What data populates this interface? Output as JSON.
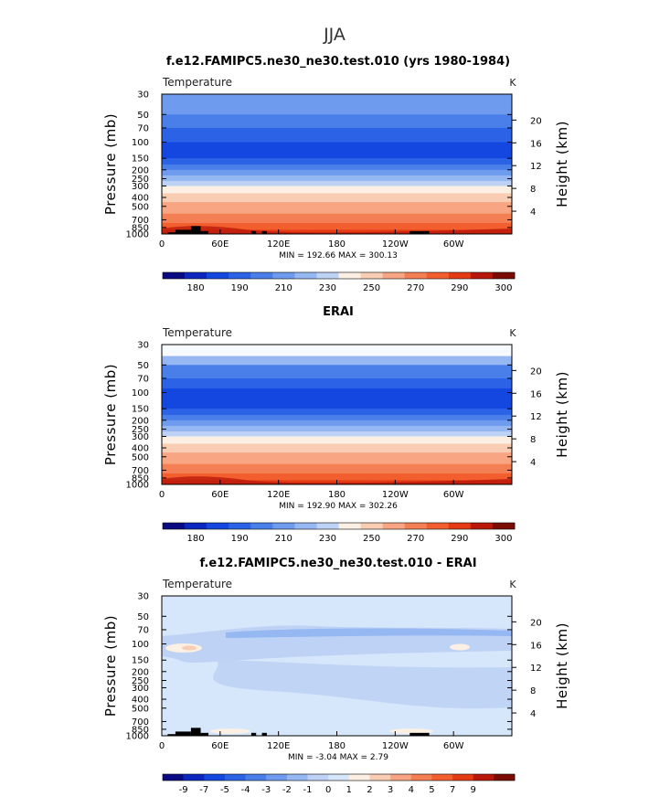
{
  "page_title": "JJA",
  "chart_data": [
    {
      "type": "heatmap",
      "id": "model",
      "title": "f.e12.FAMIPC5.ne30_ne30.test.010 (yrs 1980-1984)",
      "variable": "Temperature",
      "units": "K",
      "ylabel": "Pressure (mb)",
      "ylabel_right": "Height (km)",
      "x_ticks": [
        "0",
        "60E",
        "120E",
        "180",
        "120W",
        "60W"
      ],
      "x_tick_values": [
        0,
        60,
        120,
        180,
        240,
        300
      ],
      "xlim": [
        0,
        360
      ],
      "p_ticks": [
        "30",
        "50",
        "70",
        "100",
        "150",
        "200",
        "250",
        "300",
        "400",
        "500",
        "700",
        "850",
        "1000"
      ],
      "p_tick_values": [
        30,
        50,
        70,
        100,
        150,
        200,
        250,
        300,
        400,
        500,
        700,
        850,
        1000
      ],
      "plim": [
        30,
        1000
      ],
      "height_ticks": [
        "20",
        "16",
        "12",
        "8",
        "4"
      ],
      "height_tick_values": [
        20,
        16,
        12,
        8,
        4
      ],
      "stats": "MIN = 192.66   MAX = 300.13",
      "min": 192.66,
      "max": 300.13,
      "colorbar_labels": [
        "180",
        "190",
        "210",
        "230",
        "250",
        "270",
        "290",
        "300"
      ],
      "colorbar_colors": [
        "#0a0b82",
        "#0c27bf",
        "#1447df",
        "#2c63e6",
        "#4a7fea",
        "#6e9bee",
        "#95b7f2",
        "#bed2f5",
        "#fbf0e3",
        "#f9cdb3",
        "#f7a582",
        "#f57f54",
        "#f35e2f",
        "#e53b14",
        "#b8170a",
        "#7a0b05"
      ],
      "field_levels": [
        {
          "p": 30,
          "color": "#6e9bee"
        },
        {
          "p": 50,
          "color": "#4a7fea"
        },
        {
          "p": 70,
          "color": "#2c63e6"
        },
        {
          "p": 100,
          "color": "#1447df"
        },
        {
          "p": 150,
          "color": "#2c63e6"
        },
        {
          "p": 175,
          "color": "#4a7fea"
        },
        {
          "p": 200,
          "color": "#6e9bee"
        },
        {
          "p": 230,
          "color": "#95b7f2"
        },
        {
          "p": 265,
          "color": "#bed2f5"
        },
        {
          "p": 300,
          "color": "#fbf0e3"
        },
        {
          "p": 360,
          "color": "#f9cdb3"
        },
        {
          "p": 450,
          "color": "#f7a582"
        },
        {
          "p": 600,
          "color": "#f57f54"
        },
        {
          "p": 760,
          "color": "#f35e2f"
        },
        {
          "p": 900,
          "color": "#e53b14"
        }
      ],
      "topography": [
        {
          "x0": 6,
          "x1": 14,
          "p": 960
        },
        {
          "x0": 14,
          "x1": 30,
          "p": 900
        },
        {
          "x0": 30,
          "x1": 40,
          "p": 820
        },
        {
          "x0": 40,
          "x1": 48,
          "p": 930
        },
        {
          "x0": 92,
          "x1": 97,
          "p": 930
        },
        {
          "x0": 103,
          "x1": 108,
          "p": 930
        },
        {
          "x0": 255,
          "x1": 275,
          "p": 930
        }
      ]
    },
    {
      "type": "heatmap",
      "id": "erai",
      "title": "ERAI",
      "variable": "Temperature",
      "units": "K",
      "ylabel": "Pressure (mb)",
      "ylabel_right": "Height (km)",
      "x_ticks": [
        "0",
        "60E",
        "120E",
        "180",
        "120W",
        "60W"
      ],
      "x_tick_values": [
        0,
        60,
        120,
        180,
        240,
        300
      ],
      "xlim": [
        0,
        360
      ],
      "p_ticks": [
        "30",
        "50",
        "70",
        "100",
        "150",
        "200",
        "250",
        "300",
        "400",
        "500",
        "700",
        "850",
        "1000"
      ],
      "p_tick_values": [
        30,
        50,
        70,
        100,
        150,
        200,
        250,
        300,
        400,
        500,
        700,
        850,
        1000
      ],
      "plim": [
        30,
        1000
      ],
      "height_ticks": [
        "20",
        "16",
        "12",
        "8",
        "4"
      ],
      "height_tick_values": [
        20,
        16,
        12,
        8,
        4
      ],
      "stats": "MIN = 192.90   MAX = 302.26",
      "min": 192.9,
      "max": 302.26,
      "colorbar_labels": [
        "180",
        "190",
        "210",
        "230",
        "250",
        "270",
        "290",
        "300"
      ],
      "colorbar_colors": [
        "#0a0b82",
        "#0c27bf",
        "#1447df",
        "#2c63e6",
        "#4a7fea",
        "#6e9bee",
        "#95b7f2",
        "#bed2f5",
        "#fbf0e3",
        "#f9cdb3",
        "#f7a582",
        "#f57f54",
        "#f35e2f",
        "#e53b14",
        "#b8170a",
        "#7a0b05"
      ],
      "field_levels": [
        {
          "p": 30,
          "color": "#f7fbff"
        },
        {
          "p": 40,
          "color": "#95b7f2"
        },
        {
          "p": 50,
          "color": "#4a7fea"
        },
        {
          "p": 70,
          "color": "#2c63e6"
        },
        {
          "p": 90,
          "color": "#1447df"
        },
        {
          "p": 150,
          "color": "#2c63e6"
        },
        {
          "p": 175,
          "color": "#4a7fea"
        },
        {
          "p": 200,
          "color": "#6e9bee"
        },
        {
          "p": 230,
          "color": "#95b7f2"
        },
        {
          "p": 265,
          "color": "#bed2f5"
        },
        {
          "p": 300,
          "color": "#fbf0e3"
        },
        {
          "p": 360,
          "color": "#f9cdb3"
        },
        {
          "p": 450,
          "color": "#f7a582"
        },
        {
          "p": 600,
          "color": "#f57f54"
        },
        {
          "p": 760,
          "color": "#f35e2f"
        },
        {
          "p": 900,
          "color": "#e53b14"
        }
      ],
      "topography": []
    },
    {
      "type": "heatmap",
      "id": "difference",
      "title": "f.e12.FAMIPC5.ne30_ne30.test.010 - ERAI",
      "variable": "Temperature",
      "units": "K",
      "ylabel": "Pressure (mb)",
      "ylabel_right": "Height (km)",
      "x_ticks": [
        "0",
        "60E",
        "120E",
        "180",
        "120W",
        "60W"
      ],
      "x_tick_values": [
        0,
        60,
        120,
        180,
        240,
        300
      ],
      "xlim": [
        0,
        360
      ],
      "p_ticks": [
        "30",
        "50",
        "70",
        "100",
        "150",
        "200",
        "250",
        "300",
        "400",
        "500",
        "700",
        "850",
        "1000"
      ],
      "p_tick_values": [
        30,
        50,
        70,
        100,
        150,
        200,
        250,
        300,
        400,
        500,
        700,
        850,
        1000
      ],
      "plim": [
        30,
        1000
      ],
      "height_ticks": [
        "20",
        "16",
        "12",
        "8",
        "4"
      ],
      "height_tick_values": [
        20,
        16,
        12,
        8,
        4
      ],
      "stats": "MIN =   -3.04   MAX =    2.79",
      "min": -3.04,
      "max": 2.79,
      "colorbar_labels": [
        "-9",
        "-7",
        "-5",
        "-4",
        "-3",
        "-2",
        "-1",
        "0",
        "1",
        "2",
        "3",
        "4",
        "5",
        "7",
        "9"
      ],
      "colorbar_colors": [
        "#0a0b82",
        "#0c27bf",
        "#1447df",
        "#2c63e6",
        "#4a7fea",
        "#6e9bee",
        "#95b7f2",
        "#bed2f5",
        "#d6e6fb",
        "#fbf0e3",
        "#f9cdb3",
        "#f7a582",
        "#f57f54",
        "#f35e2f",
        "#e53b14",
        "#b8170a",
        "#7a0b05"
      ],
      "field_levels": [
        {
          "p": 30,
          "color": "#d6e6fb"
        }
      ],
      "topography": [
        {
          "x0": 6,
          "x1": 14,
          "p": 960
        },
        {
          "x0": 14,
          "x1": 30,
          "p": 900
        },
        {
          "x0": 30,
          "x1": 40,
          "p": 820
        },
        {
          "x0": 40,
          "x1": 48,
          "p": 930
        },
        {
          "x0": 92,
          "x1": 97,
          "p": 930
        },
        {
          "x0": 103,
          "x1": 108,
          "p": 930
        },
        {
          "x0": 255,
          "x1": 275,
          "p": 930
        }
      ]
    }
  ]
}
